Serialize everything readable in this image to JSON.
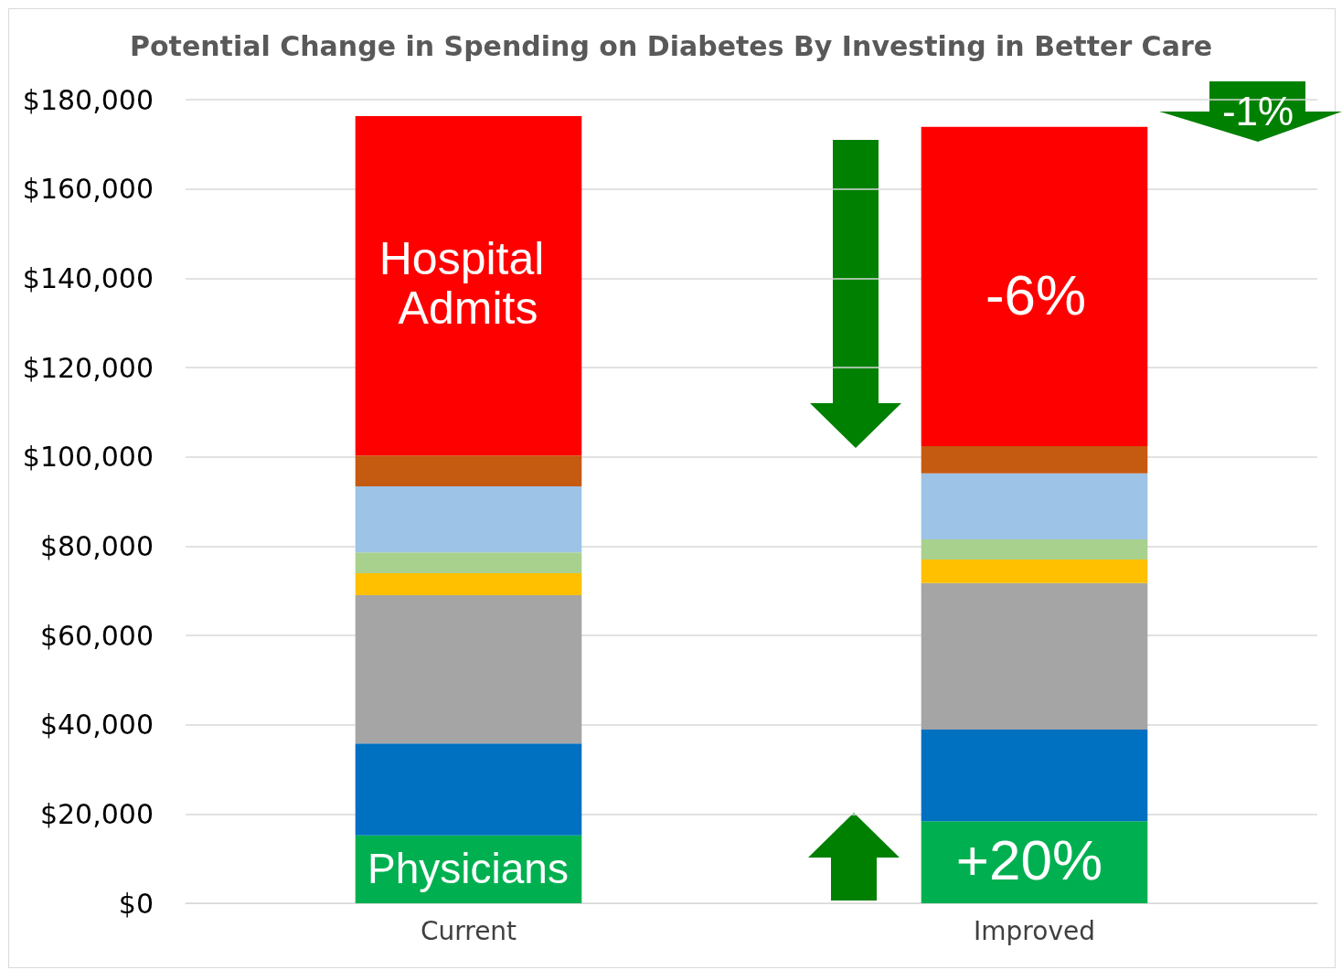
{
  "chart_data": {
    "type": "bar",
    "title": "Potential Change in Spending on Diabetes By Investing in Better Care",
    "categories": [
      "Current",
      "Improved"
    ],
    "stacked": true,
    "series": [
      {
        "color": "#00b050",
        "values": [
          15200,
          18400
        ]
      },
      {
        "color": "#0070c0",
        "values": [
          20600,
          20500
        ]
      },
      {
        "color": "#a5a5a5",
        "values": [
          33200,
          32800
        ]
      },
      {
        "color": "#ffc000",
        "values": [
          4900,
          5300
        ]
      },
      {
        "color": "#a9d18e",
        "values": [
          4700,
          4500
        ]
      },
      {
        "color": "#9dc3e6",
        "values": [
          14800,
          14800
        ]
      },
      {
        "color": "#c55a11",
        "values": [
          6900,
          6100
        ]
      },
      {
        "color": "#ff0000",
        "values": [
          76000,
          71500
        ]
      }
    ],
    "ylim": [
      0,
      180000
    ],
    "yticks": [
      {
        "value": 0,
        "label": "$0"
      },
      {
        "value": 20000,
        "label": "$20,000"
      },
      {
        "value": 40000,
        "label": "$40,000"
      },
      {
        "value": 60000,
        "label": "$60,000"
      },
      {
        "value": 80000,
        "label": "$80,000"
      },
      {
        "value": 100000,
        "label": "$100,000"
      },
      {
        "value": 120000,
        "label": "$120,000"
      },
      {
        "value": 140000,
        "label": "$140,000"
      },
      {
        "value": 160000,
        "label": "$160,000"
      },
      {
        "value": 180000,
        "label": "$180,000"
      }
    ],
    "grid": "y",
    "annotations": [
      "Hospital Admits",
      "Physicians",
      "-6%",
      "+20%",
      "-1%"
    ]
  }
}
